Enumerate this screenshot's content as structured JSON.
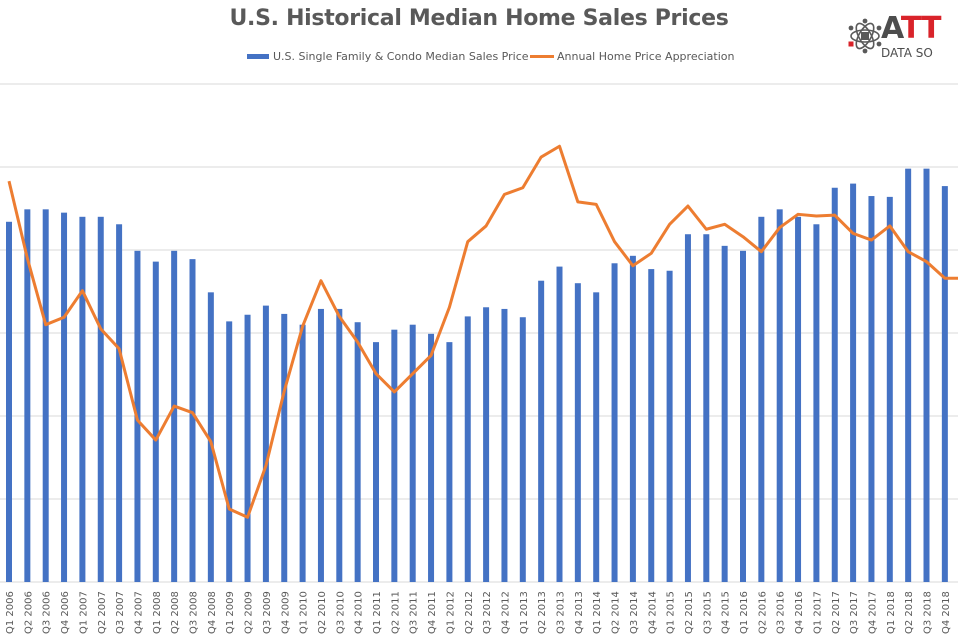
{
  "chart_data": {
    "type": "bar",
    "title": "U.S. Historical Median Home Sales Prices",
    "xlabel": "",
    "ylabel": "",
    "y_axis_note": "Y-axis tick labels are cropped out of view; values are expressed in gridline units (0 = baseline, each gridline = 1 unit)",
    "ylim": [
      0,
      6
    ],
    "grid": true,
    "legend_position": "top",
    "categories": [
      "Q1 2006",
      "Q2 2006",
      "Q3 2006",
      "Q4 2006",
      "Q1 2007",
      "Q2 2007",
      "Q3 2007",
      "Q4 2007",
      "Q1 2008",
      "Q2 2008",
      "Q3 2008",
      "Q4 2008",
      "Q1 2009",
      "Q2 2009",
      "Q3 2009",
      "Q4 2009",
      "Q1 2010",
      "Q2 2010",
      "Q3 2010",
      "Q4 2010",
      "Q1 2011",
      "Q2 2011",
      "Q3 2011",
      "Q4 2011",
      "Q1 2012",
      "Q2 2012",
      "Q3 2012",
      "Q4 2012",
      "Q1 2013",
      "Q2 2013",
      "Q3 2013",
      "Q4 2013",
      "Q1 2014",
      "Q2 2014",
      "Q3 2014",
      "Q4 2014",
      "Q1 2015",
      "Q2 2015",
      "Q3 2015",
      "Q4 2015",
      "Q1 2016",
      "Q2 2016",
      "Q3 2016",
      "Q4 2016",
      "Q1 2017",
      "Q2 2017",
      "Q3 2017",
      "Q4 2017",
      "Q1 2018",
      "Q2 2018",
      "Q3 2018",
      "Q4 2018"
    ],
    "series": [
      {
        "name": "U.S. Single Family & Condo Median Sales Price",
        "type": "bar",
        "color": "#4472C4",
        "values": [
          4.34,
          4.49,
          4.49,
          4.45,
          4.4,
          4.4,
          4.31,
          3.99,
          3.86,
          3.99,
          3.89,
          3.49,
          3.14,
          3.22,
          3.33,
          3.23,
          3.1,
          3.29,
          3.29,
          3.13,
          2.89,
          3.04,
          3.1,
          2.99,
          2.89,
          3.2,
          3.31,
          3.29,
          3.19,
          3.63,
          3.8,
          3.6,
          3.49,
          3.84,
          3.93,
          3.77,
          3.75,
          4.19,
          4.19,
          4.05,
          3.99,
          4.4,
          4.49,
          4.4,
          4.31,
          4.75,
          4.8,
          4.65,
          4.64,
          4.98,
          4.98,
          4.77
        ]
      },
      {
        "name": "Annual Home Price Appreciation",
        "type": "line",
        "color": "#ED7D31",
        "values": [
          4.83,
          3.9,
          3.1,
          3.19,
          3.51,
          3.05,
          2.81,
          1.95,
          1.71,
          2.12,
          2.04,
          1.69,
          0.88,
          0.78,
          1.4,
          2.3,
          3.08,
          3.63,
          3.2,
          2.89,
          2.51,
          2.29,
          2.51,
          2.73,
          3.31,
          4.1,
          4.29,
          4.67,
          4.75,
          5.12,
          5.25,
          4.58,
          4.55,
          4.1,
          3.81,
          3.96,
          4.31,
          4.53,
          4.25,
          4.31,
          4.16,
          3.98,
          4.27,
          4.43,
          4.41,
          4.42,
          4.2,
          4.12,
          4.29,
          3.98,
          3.86,
          3.66
        ]
      }
    ]
  },
  "legend": {
    "bar_label": "U.S. Single Family & Condo Median Sales Price",
    "line_label": "Annual Home Price Appreciation"
  },
  "logo": {
    "big_text_dark": "A",
    "big_text_red": "TT",
    "small_text": "DATA SO",
    "icon": "atom-network-icon"
  }
}
